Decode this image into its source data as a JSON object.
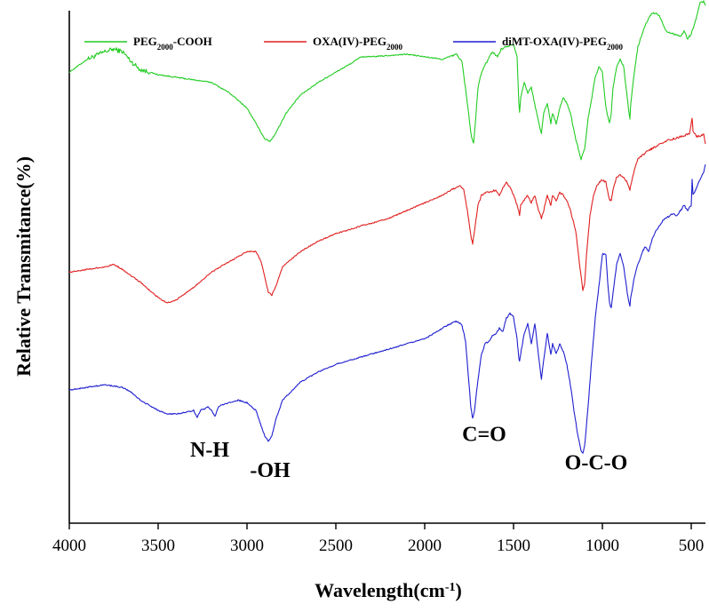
{
  "chart_data": {
    "type": "line",
    "title": "",
    "xlabel": "Wavelength(cm",
    "xlabel_sup": "-1",
    "xlabel_end": ")",
    "ylabel": "Relative Transmitance(%)",
    "xlim": [
      4000,
      420
    ],
    "x_reversed": true,
    "ylim": [
      0,
      100
    ],
    "x_ticks": [
      4000,
      3500,
      3000,
      2500,
      2000,
      1500,
      1000,
      500
    ],
    "y_ticks_shown": false,
    "grid": false,
    "legend_position": "top",
    "colors": {
      "green": "#22cc22",
      "red": "#e02020",
      "blue": "#1f1fd0"
    },
    "series": [
      {
        "name": "PEG",
        "name_sub": "2000",
        "name_end": "-COOH",
        "color": "#22cc22",
        "points": [
          [
            4000,
            88
          ],
          [
            3900,
            90.5
          ],
          [
            3800,
            92
          ],
          [
            3750,
            92.5
          ],
          [
            3700,
            92
          ],
          [
            3650,
            90
          ],
          [
            3600,
            88.5
          ],
          [
            3500,
            87.5
          ],
          [
            3400,
            87
          ],
          [
            3300,
            86.5
          ],
          [
            3200,
            86
          ],
          [
            3100,
            84
          ],
          [
            3000,
            81
          ],
          [
            2950,
            78
          ],
          [
            2900,
            75
          ],
          [
            2870,
            74.5
          ],
          [
            2840,
            76
          ],
          [
            2780,
            80
          ],
          [
            2700,
            83.5
          ],
          [
            2600,
            86
          ],
          [
            2500,
            88
          ],
          [
            2400,
            90
          ],
          [
            2360,
            91
          ],
          [
            2300,
            91
          ],
          [
            2100,
            91.5
          ],
          [
            2000,
            91
          ],
          [
            1900,
            90.5
          ],
          [
            1820,
            91.5
          ],
          [
            1790,
            90
          ],
          [
            1760,
            82
          ],
          [
            1740,
            76
          ],
          [
            1725,
            74
          ],
          [
            1715,
            78
          ],
          [
            1700,
            85
          ],
          [
            1680,
            88
          ],
          [
            1650,
            90
          ],
          [
            1620,
            92
          ],
          [
            1590,
            91
          ],
          [
            1570,
            92.5
          ],
          [
            1540,
            93
          ],
          [
            1500,
            93.5
          ],
          [
            1480,
            91
          ],
          [
            1470,
            82
          ],
          [
            1466,
            80
          ],
          [
            1460,
            83
          ],
          [
            1440,
            86
          ],
          [
            1420,
            84
          ],
          [
            1400,
            85
          ],
          [
            1370,
            80
          ],
          [
            1350,
            77
          ],
          [
            1343,
            76
          ],
          [
            1330,
            80
          ],
          [
            1310,
            82
          ],
          [
            1290,
            78
          ],
          [
            1280,
            80
          ],
          [
            1260,
            78
          ],
          [
            1240,
            81
          ],
          [
            1220,
            83
          ],
          [
            1200,
            82
          ],
          [
            1180,
            80
          ],
          [
            1150,
            75
          ],
          [
            1120,
            71
          ],
          [
            1100,
            73
          ],
          [
            1080,
            79
          ],
          [
            1060,
            83
          ],
          [
            1040,
            87
          ],
          [
            1020,
            89
          ],
          [
            1000,
            88
          ],
          [
            980,
            81
          ],
          [
            960,
            78
          ],
          [
            950,
            80
          ],
          [
            940,
            85
          ],
          [
            920,
            89
          ],
          [
            900,
            90.5
          ],
          [
            880,
            89
          ],
          [
            860,
            83
          ],
          [
            850,
            80
          ],
          [
            845,
            79
          ],
          [
            840,
            82
          ],
          [
            820,
            88
          ],
          [
            800,
            93
          ],
          [
            780,
            95
          ],
          [
            760,
            97
          ],
          [
            740,
            98.5
          ],
          [
            720,
            99.5
          ],
          [
            700,
            99.5
          ],
          [
            680,
            99
          ],
          [
            660,
            97.5
          ],
          [
            640,
            96
          ],
          [
            600,
            95.5
          ],
          [
            560,
            95
          ],
          [
            540,
            96
          ],
          [
            520,
            94.5
          ],
          [
            500,
            95.5
          ],
          [
            480,
            97.5
          ],
          [
            450,
            101.5
          ],
          [
            430,
            101.8
          ],
          [
            420,
            101
          ]
        ]
      },
      {
        "name": "OXA(IV)-PEG",
        "name_sub": "2000",
        "name_end": "",
        "color": "#e02020",
        "points": [
          [
            4000,
            49
          ],
          [
            3900,
            49.5
          ],
          [
            3800,
            50
          ],
          [
            3750,
            50.5
          ],
          [
            3700,
            49.5
          ],
          [
            3600,
            47
          ],
          [
            3500,
            44
          ],
          [
            3450,
            43
          ],
          [
            3400,
            43.5
          ],
          [
            3300,
            46
          ],
          [
            3200,
            49
          ],
          [
            3100,
            51
          ],
          [
            3000,
            53
          ],
          [
            2950,
            53
          ],
          [
            2920,
            51
          ],
          [
            2900,
            48
          ],
          [
            2880,
            45
          ],
          [
            2860,
            44.5
          ],
          [
            2840,
            46
          ],
          [
            2800,
            50
          ],
          [
            2700,
            53
          ],
          [
            2600,
            55
          ],
          [
            2500,
            56.5
          ],
          [
            2400,
            57.5
          ],
          [
            2360,
            58
          ],
          [
            2300,
            58.5
          ],
          [
            2200,
            59.5
          ],
          [
            2100,
            61
          ],
          [
            2000,
            62.5
          ],
          [
            1900,
            64
          ],
          [
            1850,
            65
          ],
          [
            1800,
            66
          ],
          [
            1780,
            65
          ],
          [
            1760,
            61
          ],
          [
            1740,
            56
          ],
          [
            1730,
            54.5
          ],
          [
            1720,
            57
          ],
          [
            1700,
            62
          ],
          [
            1680,
            64
          ],
          [
            1650,
            64.5
          ],
          [
            1600,
            65
          ],
          [
            1580,
            64
          ],
          [
            1560,
            65.5
          ],
          [
            1540,
            66.5
          ],
          [
            1520,
            65.5
          ],
          [
            1500,
            64
          ],
          [
            1470,
            61
          ],
          [
            1466,
            60
          ],
          [
            1460,
            62
          ],
          [
            1440,
            63
          ],
          [
            1420,
            64
          ],
          [
            1400,
            62.5
          ],
          [
            1380,
            64
          ],
          [
            1360,
            61
          ],
          [
            1343,
            59.5
          ],
          [
            1330,
            61
          ],
          [
            1310,
            64
          ],
          [
            1290,
            62
          ],
          [
            1280,
            64
          ],
          [
            1260,
            63
          ],
          [
            1240,
            64.5
          ],
          [
            1220,
            64
          ],
          [
            1200,
            63
          ],
          [
            1180,
            61
          ],
          [
            1150,
            57
          ],
          [
            1130,
            51
          ],
          [
            1110,
            45.5
          ],
          [
            1100,
            46.5
          ],
          [
            1090,
            52
          ],
          [
            1070,
            60
          ],
          [
            1050,
            64
          ],
          [
            1030,
            66
          ],
          [
            1000,
            67
          ],
          [
            980,
            66.5
          ],
          [
            960,
            63
          ],
          [
            950,
            63
          ],
          [
            940,
            65
          ],
          [
            920,
            67.5
          ],
          [
            900,
            68
          ],
          [
            880,
            67.5
          ],
          [
            860,
            66.5
          ],
          [
            845,
            65
          ],
          [
            840,
            66
          ],
          [
            820,
            69
          ],
          [
            800,
            71
          ],
          [
            750,
            72.5
          ],
          [
            700,
            73.5
          ],
          [
            650,
            74.5
          ],
          [
            600,
            75
          ],
          [
            550,
            75.5
          ],
          [
            510,
            76
          ],
          [
            495,
            79
          ],
          [
            490,
            76.5
          ],
          [
            470,
            75.5
          ],
          [
            450,
            75.5
          ],
          [
            430,
            76
          ],
          [
            420,
            74
          ]
        ]
      },
      {
        "name": "diMT-OXA(IV)-PEG",
        "name_sub": "2000",
        "name_end": "",
        "color": "#1f1fd0",
        "points": [
          [
            4000,
            26
          ],
          [
            3900,
            26.5
          ],
          [
            3800,
            27
          ],
          [
            3700,
            26.5
          ],
          [
            3650,
            25.5
          ],
          [
            3600,
            24
          ],
          [
            3500,
            22
          ],
          [
            3450,
            21.3
          ],
          [
            3400,
            21.3
          ],
          [
            3350,
            21.6
          ],
          [
            3300,
            22
          ],
          [
            3280,
            20.6
          ],
          [
            3260,
            22.2
          ],
          [
            3240,
            22.2
          ],
          [
            3220,
            22.8
          ],
          [
            3200,
            22
          ],
          [
            3180,
            20.8
          ],
          [
            3160,
            22.8
          ],
          [
            3100,
            23.5
          ],
          [
            3050,
            24
          ],
          [
            3000,
            23.5
          ],
          [
            2950,
            22
          ],
          [
            2920,
            19
          ],
          [
            2900,
            17
          ],
          [
            2880,
            16
          ],
          [
            2860,
            17
          ],
          [
            2840,
            20
          ],
          [
            2800,
            24
          ],
          [
            2700,
            27.5
          ],
          [
            2600,
            29.5
          ],
          [
            2500,
            31
          ],
          [
            2400,
            32
          ],
          [
            2300,
            33
          ],
          [
            2200,
            34
          ],
          [
            2100,
            35
          ],
          [
            2000,
            36
          ],
          [
            1950,
            37
          ],
          [
            1900,
            38
          ],
          [
            1850,
            39
          ],
          [
            1820,
            39.4
          ],
          [
            1790,
            38.6
          ],
          [
            1770,
            35.6
          ],
          [
            1750,
            27
          ],
          [
            1740,
            22.5
          ],
          [
            1730,
            20.5
          ],
          [
            1720,
            22
          ],
          [
            1700,
            28
          ],
          [
            1680,
            33
          ],
          [
            1660,
            35
          ],
          [
            1640,
            35.5
          ],
          [
            1620,
            36.5
          ],
          [
            1600,
            37
          ],
          [
            1580,
            38
          ],
          [
            1560,
            37.5
          ],
          [
            1540,
            40
          ],
          [
            1520,
            41
          ],
          [
            1500,
            40.2
          ],
          [
            1480,
            36
          ],
          [
            1470,
            32
          ],
          [
            1466,
            31.5
          ],
          [
            1460,
            33
          ],
          [
            1440,
            37
          ],
          [
            1420,
            39
          ],
          [
            1400,
            35
          ],
          [
            1380,
            39
          ],
          [
            1360,
            33
          ],
          [
            1343,
            28
          ],
          [
            1330,
            32
          ],
          [
            1310,
            37
          ],
          [
            1290,
            33
          ],
          [
            1280,
            35
          ],
          [
            1260,
            33
          ],
          [
            1240,
            35
          ],
          [
            1220,
            33.5
          ],
          [
            1200,
            31
          ],
          [
            1180,
            27
          ],
          [
            1160,
            22
          ],
          [
            1140,
            17.5
          ],
          [
            1120,
            14
          ],
          [
            1110,
            13.5
          ],
          [
            1100,
            15
          ],
          [
            1080,
            23
          ],
          [
            1060,
            32
          ],
          [
            1040,
            40
          ],
          [
            1020,
            46
          ],
          [
            1000,
            52.5
          ],
          [
            980,
            52.5
          ],
          [
            970,
            47
          ],
          [
            960,
            43
          ],
          [
            950,
            42
          ],
          [
            940,
            45
          ],
          [
            920,
            50.5
          ],
          [
            900,
            52.5
          ],
          [
            880,
            50
          ],
          [
            860,
            45
          ],
          [
            850,
            43
          ],
          [
            845,
            42.5
          ],
          [
            840,
            44
          ],
          [
            820,
            48
          ],
          [
            800,
            50.5
          ],
          [
            780,
            52.5
          ],
          [
            760,
            54
          ],
          [
            740,
            53
          ],
          [
            720,
            55.5
          ],
          [
            700,
            57
          ],
          [
            680,
            58
          ],
          [
            660,
            59
          ],
          [
            640,
            59.5
          ],
          [
            620,
            60
          ],
          [
            600,
            60.5
          ],
          [
            580,
            60
          ],
          [
            560,
            61
          ],
          [
            540,
            62
          ],
          [
            520,
            61
          ],
          [
            500,
            62
          ],
          [
            495,
            67
          ],
          [
            490,
            64
          ],
          [
            470,
            65.5
          ],
          [
            450,
            67
          ],
          [
            430,
            68.5
          ],
          [
            420,
            70
          ]
        ]
      }
    ],
    "annotations": [
      {
        "text": "N-H",
        "x": 3210,
        "y": 13
      },
      {
        "text": "-OH",
        "x": 2870,
        "y": 9
      },
      {
        "text": "C=O",
        "x": 1665,
        "y": 16
      },
      {
        "text": "O-C-O",
        "x": 1035,
        "y": 10.5
      }
    ]
  }
}
